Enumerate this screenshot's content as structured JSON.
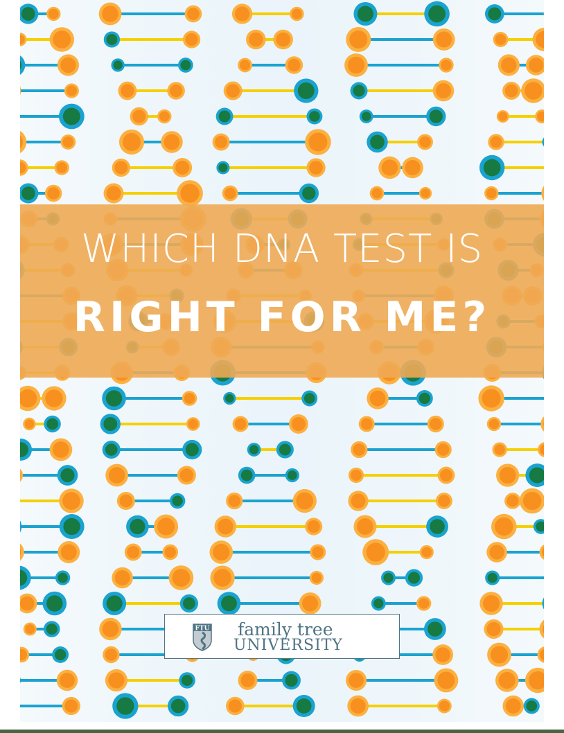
{
  "title": {
    "line1": "WHICH DNA TEST IS",
    "line2": "RIGHT FOR ME?"
  },
  "logo": {
    "shield_text": "FTU",
    "line1": "family tree",
    "line2": "UNIVERSITY"
  },
  "colors": {
    "banner": "#eeaa54",
    "orange": "#f7901e",
    "orange_ring": "#fbb040",
    "blue": "#1aa3d0",
    "green": "#177a42",
    "rung": "#f5d000",
    "logo": "#4f7484",
    "bottom_rule": "#4a6340"
  },
  "background": {
    "pattern": "dna-double-helix"
  }
}
